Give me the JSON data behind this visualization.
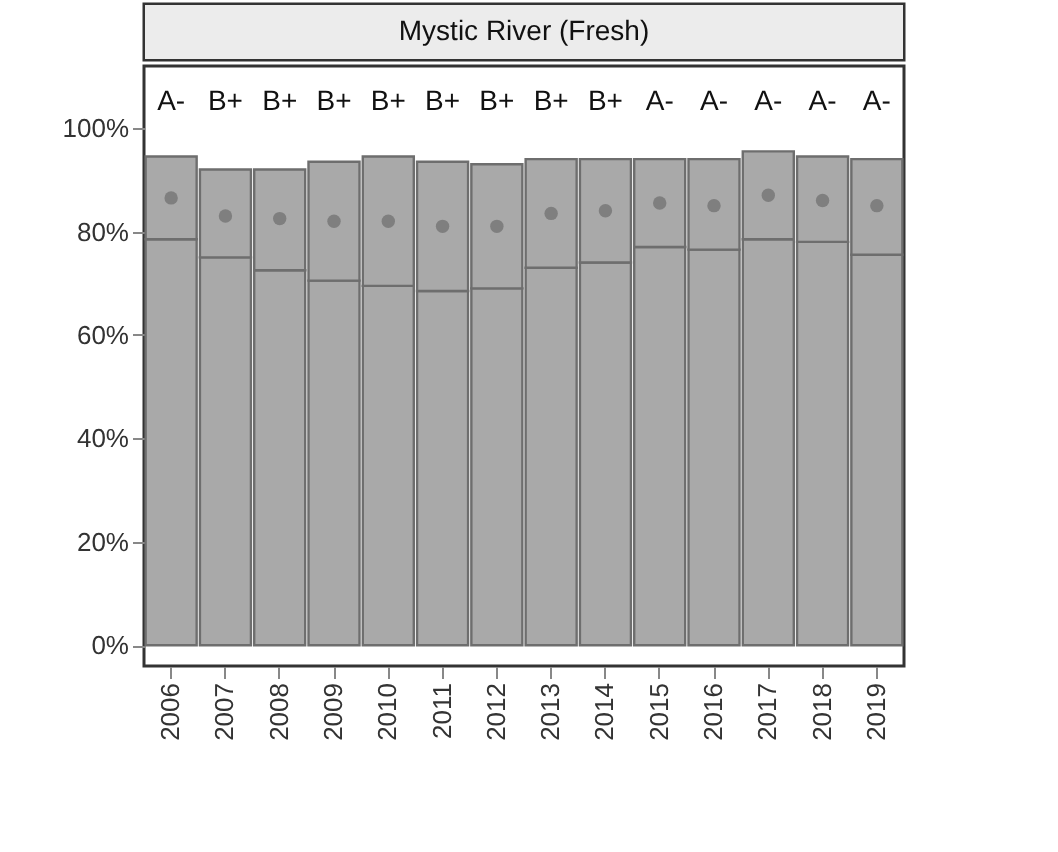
{
  "chart_data": {
    "type": "bar",
    "title": "Mystic River (Fresh)",
    "categories": [
      "2006",
      "2007",
      "2008",
      "2009",
      "2010",
      "2011",
      "2012",
      "2013",
      "2014",
      "2015",
      "2016",
      "2017",
      "2018",
      "2019"
    ],
    "stacked": true,
    "series": [
      {
        "color": "#a9a9a9",
        "values": [
          78.5,
          75,
          72.5,
          70.5,
          69.5,
          68.5,
          69,
          73,
          74,
          77,
          76.5,
          78.5,
          78,
          75.5
        ]
      },
      {
        "color": "#a9a9a9",
        "values": [
          16,
          17,
          19.5,
          23,
          25,
          25,
          24,
          21,
          20,
          17,
          17.5,
          17,
          16.5,
          18.5
        ]
      },
      {
        "type": "scatter",
        "color": "#7f7f7f",
        "marker": "circle",
        "values": [
          86.5,
          83,
          82.5,
          82,
          82,
          81,
          81,
          83.5,
          84,
          85.5,
          85,
          87,
          86,
          85
        ]
      }
    ],
    "ylim": [
      -4,
      112
    ],
    "yticks": [
      {
        "value": 0,
        "label": "0%"
      },
      {
        "value": 20,
        "label": "20%"
      },
      {
        "value": 40,
        "label": "40%"
      },
      {
        "value": 60,
        "label": "60%"
      },
      {
        "value": 80,
        "label": "80%"
      },
      {
        "value": 100,
        "label": "100%"
      }
    ],
    "annotations": [
      "A-",
      "B+",
      "B+",
      "B+",
      "B+",
      "B+",
      "B+",
      "B+",
      "B+",
      "A-",
      "A-",
      "A-",
      "A-",
      "A-"
    ],
    "ylabel": null
  }
}
